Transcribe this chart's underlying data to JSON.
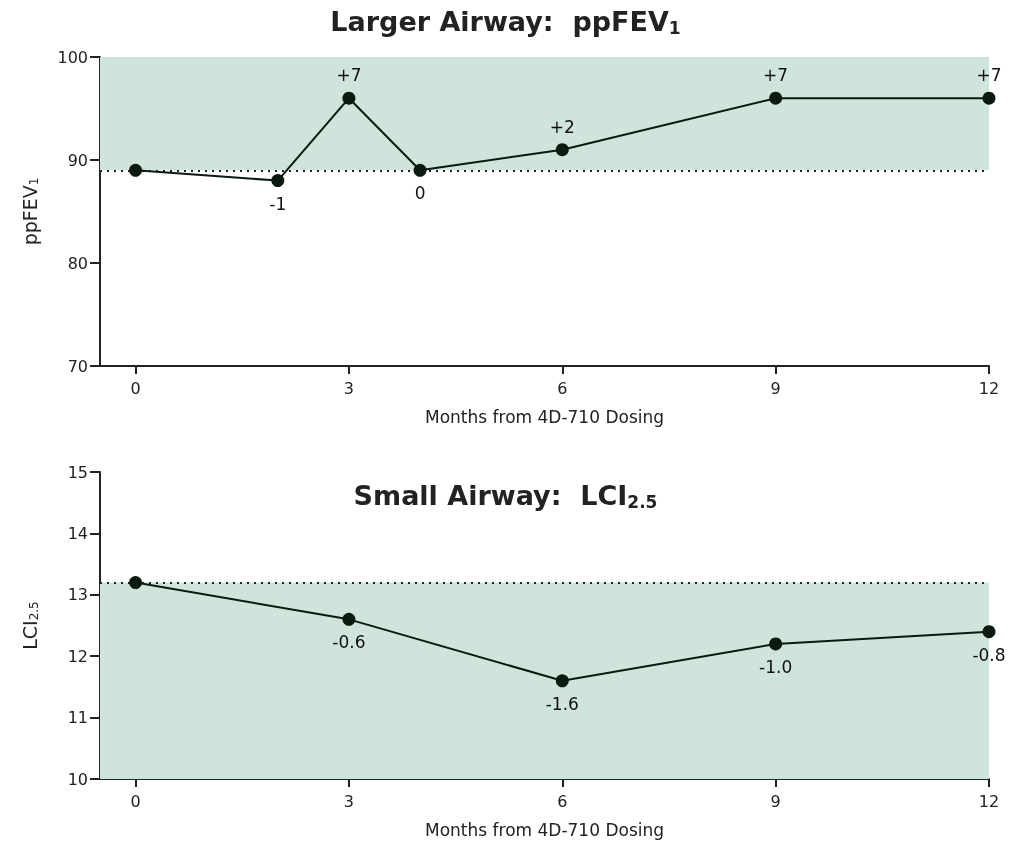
{
  "chart_data": [
    {
      "type": "line",
      "title": "Larger Airway:  ppFEV$_{1}$",
      "xlabel": "Months from 4D-710 Dosing",
      "ylabel": "ppFEV$_{1}$",
      "x": [
        0,
        2,
        3,
        4,
        6,
        9,
        12
      ],
      "series": [
        {
          "color": "#0a1a10",
          "values": [
            89,
            88,
            96,
            89,
            91,
            96,
            96
          ]
        }
      ],
      "annotations": [
        {
          "text": "-1",
          "x": 2,
          "y": 88
        },
        {
          "text": "+7",
          "x": 3,
          "y": 96
        },
        {
          "text": "0",
          "x": 4,
          "y": 89
        },
        {
          "text": "+2",
          "x": 6,
          "y": 91
        },
        {
          "text": "+7",
          "x": 9,
          "y": 96
        },
        {
          "text": "+7",
          "x": 12,
          "y": 96
        }
      ],
      "xlim": [
        -0.5,
        12
      ],
      "xticks": [
        0,
        3,
        6,
        9,
        12
      ],
      "ylim": [
        70,
        100
      ],
      "yticks": [
        70,
        80,
        90,
        100
      ],
      "ref_lines": [
        {
          "axis": "y",
          "value": 89,
          "color": "#222222",
          "line_style": "dotted"
        }
      ],
      "bands": [
        {
          "axis": "y",
          "from": 89,
          "to": 100,
          "color": "#cfe4da"
        }
      ],
      "marker": "circle",
      "line_style": "solid"
    },
    {
      "type": "line",
      "title": "Small Airway:  LCI$_{2.5}$",
      "xlabel": "Months from 4D-710 Dosing",
      "ylabel": "LCI$_{2.5}$",
      "x": [
        0,
        3,
        6,
        9,
        12
      ],
      "series": [
        {
          "color": "#0a1a10",
          "values": [
            13.2,
            12.6,
            11.6,
            12.2,
            12.4
          ]
        }
      ],
      "annotations": [
        {
          "text": "-0.6",
          "x": 3,
          "y": 12.6
        },
        {
          "text": "-1.6",
          "x": 6,
          "y": 11.6
        },
        {
          "text": "-1.0",
          "x": 9,
          "y": 12.2
        },
        {
          "text": "-0.8",
          "x": 12,
          "y": 12.4
        }
      ],
      "xlim": [
        -0.5,
        12
      ],
      "xticks": [
        0,
        3,
        6,
        9,
        12
      ],
      "ylim": [
        10,
        15
      ],
      "yticks": [
        10,
        11,
        12,
        13,
        14,
        15
      ],
      "ref_lines": [
        {
          "axis": "y",
          "value": 13.2,
          "color": "#222222",
          "line_style": "dotted"
        }
      ],
      "bands": [
        {
          "axis": "y",
          "from": 10,
          "to": 13.2,
          "color": "#cfe4da"
        }
      ],
      "marker": "circle",
      "line_style": "solid"
    }
  ]
}
